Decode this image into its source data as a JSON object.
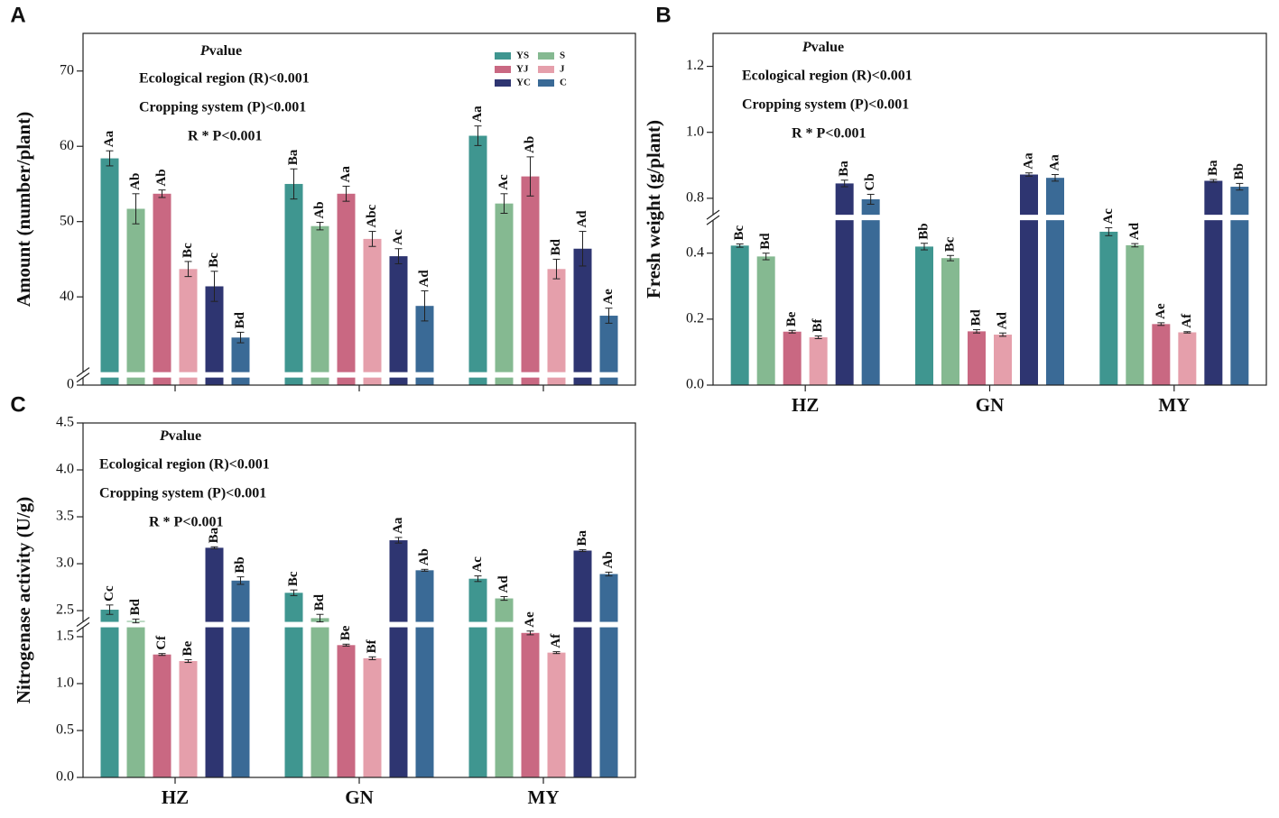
{
  "chart_data": [
    {
      "type": "bar",
      "panel_label": "A",
      "y_label": "Amount (number/plant)",
      "legend": true,
      "categories": [
        null,
        null,
        null
      ],
      "ylim": [
        0,
        75
      ],
      "ybreak": [
        1,
        30
      ],
      "yticks": [
        0,
        40,
        50,
        60,
        70
      ],
      "annotation_title": [
        "P",
        "value"
      ],
      "annotations": [
        "Ecological region (R)<0.001",
        "Cropping system (P)<0.001",
        "R * P<0.001"
      ],
      "series": [
        {
          "name": "YS",
          "color": "#3f9690",
          "values": [
            58.4,
            55.0,
            61.4
          ],
          "errors": [
            1.0,
            2.0,
            1.3
          ],
          "significance_labels": [
            "Aa",
            "Ba",
            "Aa"
          ]
        },
        {
          "name": "S",
          "color": "#85b991",
          "values": [
            51.7,
            49.4,
            52.4
          ],
          "errors": [
            2.0,
            0.5,
            1.3
          ],
          "significance_labels": [
            "Ab",
            "Ab",
            "Ac"
          ]
        },
        {
          "name": "YJ",
          "color": "#c96882",
          "values": [
            53.7,
            53.7,
            56.0
          ],
          "errors": [
            0.5,
            1.0,
            2.6
          ],
          "significance_labels": [
            "Ab",
            "Aa",
            "Ab"
          ]
        },
        {
          "name": "J",
          "color": "#e59fab",
          "values": [
            43.7,
            47.7,
            43.7
          ],
          "errors": [
            1.0,
            1.0,
            1.3
          ],
          "significance_labels": [
            "Bc",
            "Abc",
            "Bd"
          ]
        },
        {
          "name": "YC",
          "color": "#2e3571",
          "values": [
            41.4,
            45.4,
            46.4
          ],
          "errors": [
            2.0,
            1.0,
            2.3
          ],
          "significance_labels": [
            "Bc",
            "Ac",
            "Ad"
          ]
        },
        {
          "name": "C",
          "color": "#3a6a96",
          "values": [
            34.6,
            38.8,
            37.5
          ],
          "errors": [
            0.7,
            2.0,
            1.0
          ],
          "significance_labels": [
            "Bd",
            "Ad",
            "Ae"
          ]
        }
      ]
    },
    {
      "type": "bar",
      "panel_label": "B",
      "y_label": "Fresh weight  (g/plant)",
      "legend": false,
      "categories": [
        "HZ",
        "GN",
        "MY"
      ],
      "ylim": [
        0,
        1.3
      ],
      "ybreak": [
        0.5,
        0.75
      ],
      "yticks": [
        {
          "value": 0,
          "label": "0.0"
        },
        0.2,
        0.4,
        0.8,
        {
          "value": 1,
          "label": "1.0"
        },
        1.2
      ],
      "annotation_title": [
        "P",
        "value"
      ],
      "annotations": [
        "Ecological region (R)<0.001",
        "Cropping system (P)<0.001",
        "R * P<0.001"
      ],
      "series": [
        {
          "color": "#3f9690",
          "values": [
            0.423,
            0.42,
            0.465
          ],
          "errors": [
            0.005,
            0.01,
            0.012
          ],
          "significance_labels": [
            "Bc",
            "Bb",
            "Ac"
          ]
        },
        {
          "color": "#85b991",
          "values": [
            0.39,
            0.385,
            0.424
          ],
          "errors": [
            0.01,
            0.008,
            0.005
          ],
          "significance_labels": [
            "Bd",
            "Bc",
            "Ad"
          ]
        },
        {
          "color": "#c96882",
          "values": [
            0.162,
            0.163,
            0.185
          ],
          "errors": [
            0.004,
            0.005,
            0.004
          ],
          "significance_labels": [
            "Be",
            "Bd",
            "Ae"
          ]
        },
        {
          "color": "#e59fab",
          "values": [
            0.145,
            0.153,
            0.16
          ],
          "errors": [
            0.004,
            0.005,
            0.002
          ],
          "significance_labels": [
            "Bf",
            "Ad",
            "Af"
          ]
        },
        {
          "color": "#2e3571",
          "values": [
            0.845,
            0.872,
            0.853
          ],
          "errors": [
            0.01,
            0.005,
            0.004
          ],
          "significance_labels": [
            "Ba",
            "Aa",
            "Ba"
          ]
        },
        {
          "color": "#3a6a96",
          "values": [
            0.797,
            0.862,
            0.835
          ],
          "errors": [
            0.015,
            0.01,
            0.01
          ],
          "significance_labels": [
            "Cb",
            "Aa",
            "Bb"
          ]
        }
      ]
    },
    {
      "type": "bar",
      "panel_label": "C",
      "y_label": "Nitrogenase activity (U/g)",
      "legend": false,
      "categories": [
        "HZ",
        "GN",
        "MY"
      ],
      "ylim": [
        0,
        4.5
      ],
      "ybreak": [
        1.6,
        2.38
      ],
      "yticks": [
        {
          "value": 0,
          "label": "0.0"
        },
        0.5,
        {
          "value": 1,
          "label": "1.0"
        },
        1.5,
        2.5,
        {
          "value": 3,
          "label": "3.0"
        },
        3.5,
        {
          "value": 4,
          "label": "4.0"
        },
        4.5
      ],
      "annotation_title": [
        "P",
        "value"
      ],
      "annotations": [
        "Ecological region (R)<0.001",
        "Cropping system (P)<0.001",
        "R * P<0.001"
      ],
      "series": [
        {
          "color": "#3f9690",
          "values": [
            2.51,
            2.69,
            2.84
          ],
          "errors": [
            0.05,
            0.03,
            0.03
          ],
          "significance_labels": [
            "Cc",
            "Bc",
            "Ac"
          ]
        },
        {
          "color": "#85b991",
          "values": [
            2.39,
            2.42,
            2.63
          ],
          "errors": [
            0.02,
            0.04,
            0.02
          ],
          "significance_labels": [
            "Bd",
            "Bd",
            "Ad"
          ]
        },
        {
          "color": "#c96882",
          "values": [
            1.31,
            1.41,
            1.54
          ],
          "errors": [
            0.01,
            0.01,
            0.02
          ],
          "significance_labels": [
            "Cf",
            "Be",
            "Ae"
          ]
        },
        {
          "color": "#e59fab",
          "values": [
            1.24,
            1.27,
            1.33
          ],
          "errors": [
            0.015,
            0.015,
            0.01
          ],
          "significance_labels": [
            "Be",
            "Bf",
            "Af"
          ]
        },
        {
          "color": "#2e3571",
          "values": [
            3.17,
            3.25,
            3.14
          ],
          "errors": [
            0.01,
            0.03,
            0.01
          ],
          "significance_labels": [
            "Ba",
            "Aa",
            "Ba"
          ]
        },
        {
          "color": "#3a6a96",
          "values": [
            2.82,
            2.93,
            2.89
          ],
          "errors": [
            0.04,
            0.01,
            0.02
          ],
          "significance_labels": [
            "Bb",
            "Ab",
            "Ab"
          ]
        }
      ]
    }
  ]
}
